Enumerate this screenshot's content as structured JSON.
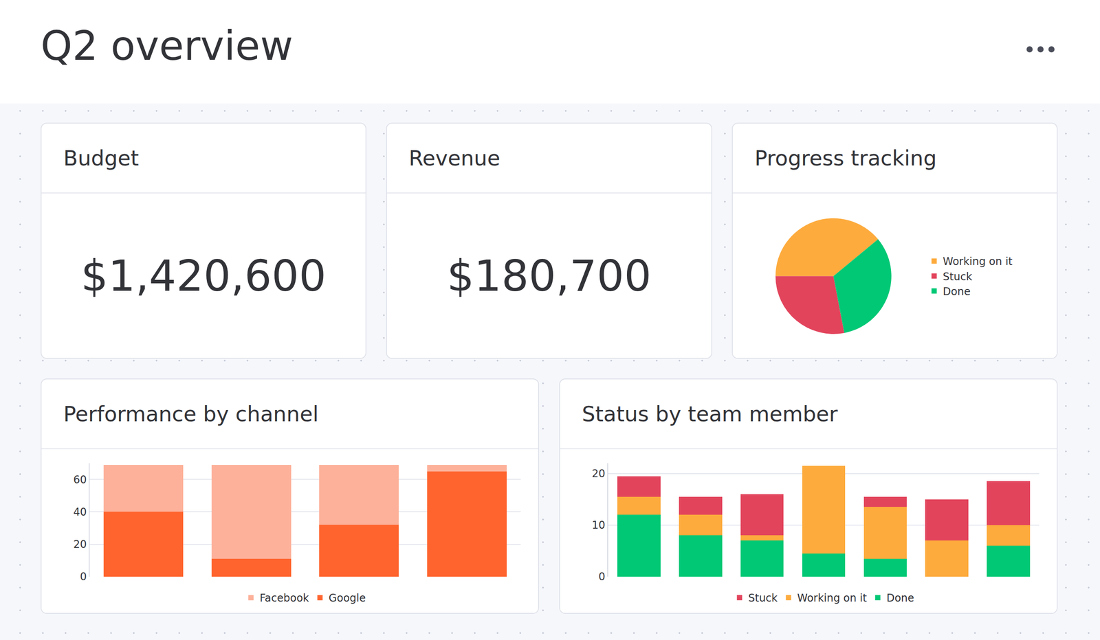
{
  "title": "Q2 overview",
  "kpis": [
    {
      "title": "Budget",
      "value": "$1,420,600"
    },
    {
      "title": "Revenue",
      "value": "$180,700"
    }
  ],
  "chart_data": [
    {
      "type": "pie",
      "title": "Progress tracking",
      "categories": [
        "Working on it",
        "Stuck",
        "Done"
      ],
      "values": [
        39,
        28,
        33
      ],
      "colors": [
        "#fdab3d",
        "#e2445c",
        "#00c875"
      ],
      "legend": "right"
    },
    {
      "type": "bar",
      "title": "Performance by channel",
      "categories": [
        null,
        null,
        null,
        null
      ],
      "series": [
        {
          "name": "Google",
          "color": "#ff642e",
          "values": [
            40,
            11,
            32,
            65
          ]
        },
        {
          "name": "Facebook",
          "color": "#fdb19a",
          "values": [
            29,
            58,
            37,
            4
          ]
        }
      ],
      "stacked": true,
      "ylim": [
        0,
        70
      ],
      "yticks": [
        0,
        20,
        40,
        60
      ],
      "grid": true,
      "legend": "bottom",
      "tick_labels": "y"
    },
    {
      "type": "bar",
      "title": "Status by team member",
      "categories": [
        null,
        null,
        null,
        null,
        null,
        null,
        null
      ],
      "series": [
        {
          "name": "Done",
          "color": "#00c875",
          "values": [
            12,
            8,
            7,
            4.5,
            3.5,
            0,
            6
          ]
        },
        {
          "name": "Working on it",
          "color": "#fdab3d",
          "values": [
            3.5,
            4,
            1,
            17,
            10,
            7,
            4
          ]
        },
        {
          "name": "Stuck",
          "color": "#e2445c",
          "values": [
            4,
            3.5,
            8,
            0,
            2,
            8,
            8.5
          ]
        }
      ],
      "stacked": true,
      "ylim": [
        0,
        22
      ],
      "yticks": [
        0,
        10,
        20
      ],
      "grid": true,
      "legend": "bottom",
      "tick_labels": "y"
    }
  ]
}
